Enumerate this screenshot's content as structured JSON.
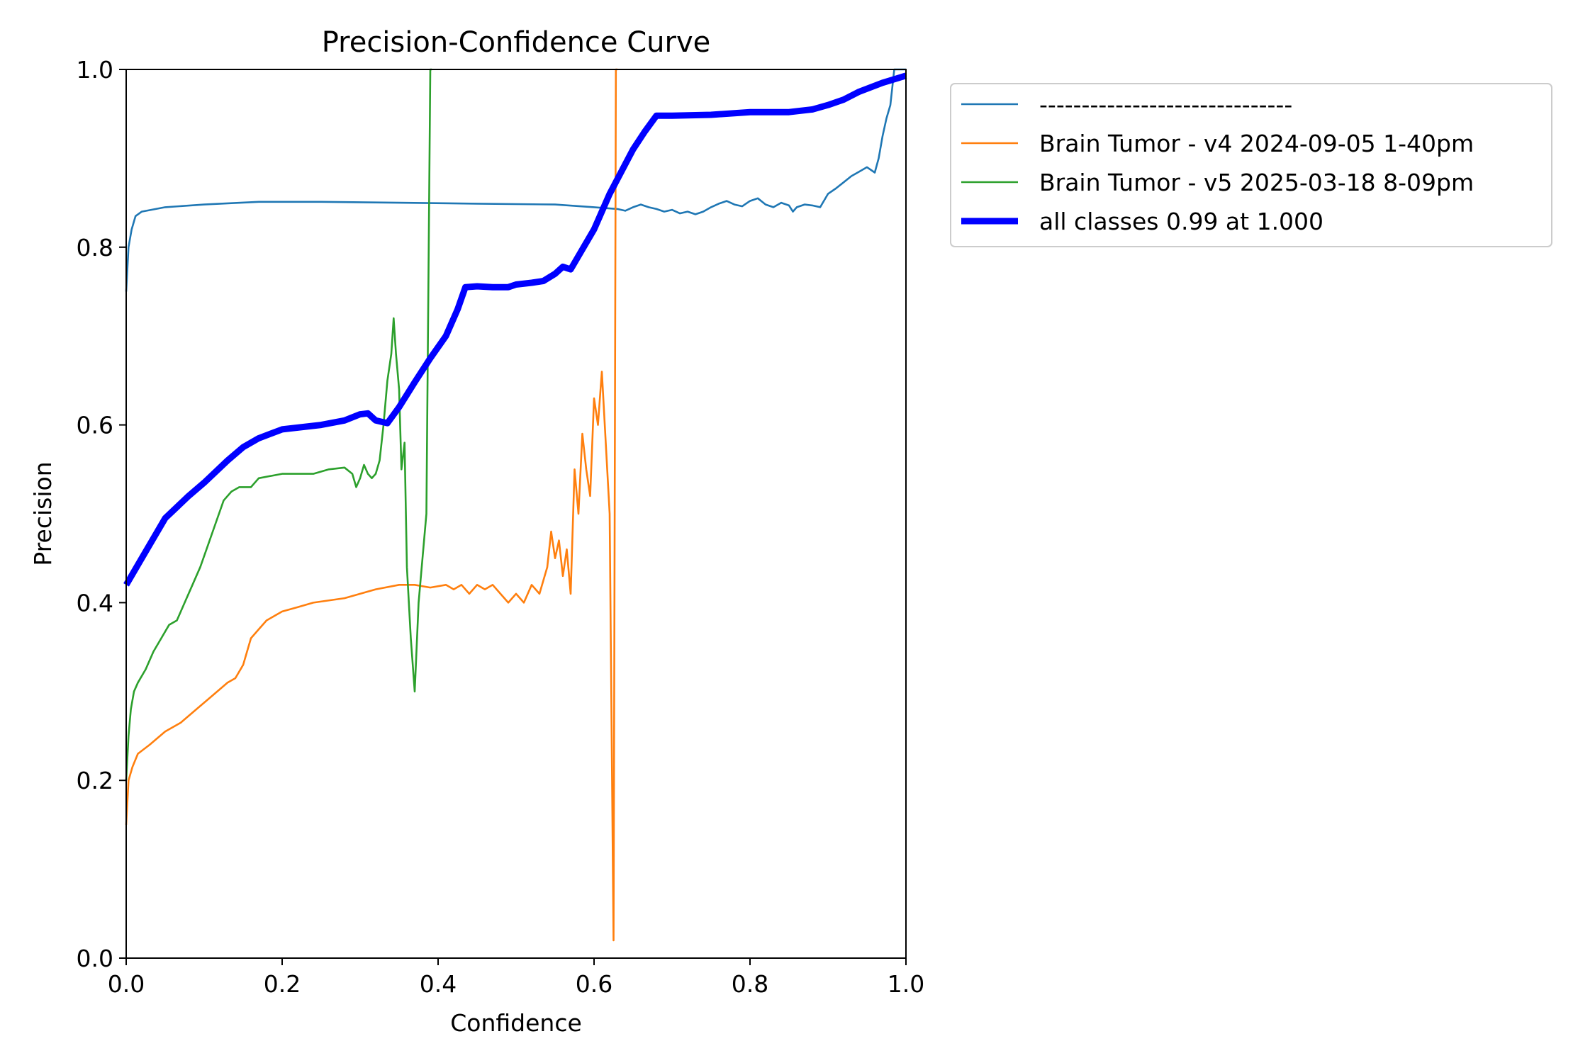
{
  "chart_data": {
    "type": "line",
    "title": "Precision-Confidence Curve",
    "xlabel": "Confidence",
    "ylabel": "Precision",
    "xlim": [
      0,
      1
    ],
    "ylim": [
      0,
      1
    ],
    "xticks": [
      "0.0",
      "0.2",
      "0.4",
      "0.6",
      "0.8",
      "1.0"
    ],
    "yticks": [
      "0.0",
      "0.2",
      "0.4",
      "0.6",
      "0.8",
      "1.0"
    ],
    "grid": false,
    "legend_position": "outside-right-top",
    "series": [
      {
        "name": "------------------------------",
        "color": "#1f77b4",
        "points": [
          [
            0.0,
            0.75
          ],
          [
            0.003,
            0.8
          ],
          [
            0.007,
            0.82
          ],
          [
            0.012,
            0.835
          ],
          [
            0.02,
            0.84
          ],
          [
            0.05,
            0.845
          ],
          [
            0.1,
            0.848
          ],
          [
            0.17,
            0.851
          ],
          [
            0.25,
            0.851
          ],
          [
            0.35,
            0.85
          ],
          [
            0.45,
            0.849
          ],
          [
            0.55,
            0.848
          ],
          [
            0.6,
            0.845
          ],
          [
            0.63,
            0.843
          ],
          [
            0.64,
            0.841
          ],
          [
            0.65,
            0.845
          ],
          [
            0.66,
            0.848
          ],
          [
            0.67,
            0.845
          ],
          [
            0.68,
            0.843
          ],
          [
            0.69,
            0.84
          ],
          [
            0.7,
            0.842
          ],
          [
            0.71,
            0.838
          ],
          [
            0.72,
            0.84
          ],
          [
            0.73,
            0.837
          ],
          [
            0.74,
            0.84
          ],
          [
            0.75,
            0.845
          ],
          [
            0.76,
            0.849
          ],
          [
            0.77,
            0.852
          ],
          [
            0.78,
            0.848
          ],
          [
            0.79,
            0.846
          ],
          [
            0.8,
            0.852
          ],
          [
            0.81,
            0.855
          ],
          [
            0.82,
            0.848
          ],
          [
            0.83,
            0.845
          ],
          [
            0.84,
            0.85
          ],
          [
            0.85,
            0.847
          ],
          [
            0.855,
            0.84
          ],
          [
            0.86,
            0.845
          ],
          [
            0.87,
            0.848
          ],
          [
            0.88,
            0.847
          ],
          [
            0.89,
            0.845
          ],
          [
            0.9,
            0.86
          ],
          [
            0.91,
            0.866
          ],
          [
            0.92,
            0.873
          ],
          [
            0.93,
            0.88
          ],
          [
            0.94,
            0.885
          ],
          [
            0.95,
            0.89
          ],
          [
            0.96,
            0.884
          ],
          [
            0.965,
            0.9
          ],
          [
            0.97,
            0.925
          ],
          [
            0.975,
            0.945
          ],
          [
            0.98,
            0.96
          ],
          [
            0.985,
            1.0
          ],
          [
            0.99,
            1.0
          ],
          [
            1.0,
            1.0
          ]
        ]
      },
      {
        "name": "Brain Tumor - v4 2024-09-05 1-40pm",
        "color": "#ff7f0e",
        "points": [
          [
            0.0,
            0.15
          ],
          [
            0.003,
            0.2
          ],
          [
            0.008,
            0.215
          ],
          [
            0.015,
            0.23
          ],
          [
            0.03,
            0.24
          ],
          [
            0.05,
            0.255
          ],
          [
            0.07,
            0.265
          ],
          [
            0.09,
            0.28
          ],
          [
            0.11,
            0.295
          ],
          [
            0.13,
            0.31
          ],
          [
            0.14,
            0.315
          ],
          [
            0.15,
            0.33
          ],
          [
            0.16,
            0.36
          ],
          [
            0.17,
            0.37
          ],
          [
            0.18,
            0.38
          ],
          [
            0.2,
            0.39
          ],
          [
            0.22,
            0.395
          ],
          [
            0.24,
            0.4
          ],
          [
            0.28,
            0.405
          ],
          [
            0.3,
            0.41
          ],
          [
            0.32,
            0.415
          ],
          [
            0.35,
            0.42
          ],
          [
            0.37,
            0.42
          ],
          [
            0.39,
            0.417
          ],
          [
            0.41,
            0.42
          ],
          [
            0.42,
            0.415
          ],
          [
            0.43,
            0.42
          ],
          [
            0.44,
            0.41
          ],
          [
            0.45,
            0.42
          ],
          [
            0.46,
            0.415
          ],
          [
            0.47,
            0.42
          ],
          [
            0.48,
            0.41
          ],
          [
            0.49,
            0.4
          ],
          [
            0.5,
            0.41
          ],
          [
            0.51,
            0.4
          ],
          [
            0.52,
            0.42
          ],
          [
            0.53,
            0.41
          ],
          [
            0.54,
            0.44
          ],
          [
            0.545,
            0.48
          ],
          [
            0.55,
            0.45
          ],
          [
            0.555,
            0.47
          ],
          [
            0.56,
            0.43
          ],
          [
            0.565,
            0.46
          ],
          [
            0.57,
            0.41
          ],
          [
            0.575,
            0.55
          ],
          [
            0.58,
            0.5
          ],
          [
            0.585,
            0.59
          ],
          [
            0.59,
            0.55
          ],
          [
            0.595,
            0.52
          ],
          [
            0.6,
            0.63
          ],
          [
            0.605,
            0.6
          ],
          [
            0.61,
            0.66
          ],
          [
            0.615,
            0.58
          ],
          [
            0.62,
            0.5
          ],
          [
            0.625,
            0.02
          ],
          [
            0.628,
            1.0
          ],
          [
            0.63,
            1.0
          ]
        ]
      },
      {
        "name": "Brain Tumor - v5 2025-03-18 8-09pm",
        "color": "#2ca02c",
        "points": [
          [
            0.0,
            0.2
          ],
          [
            0.003,
            0.25
          ],
          [
            0.006,
            0.28
          ],
          [
            0.01,
            0.3
          ],
          [
            0.015,
            0.31
          ],
          [
            0.025,
            0.325
          ],
          [
            0.035,
            0.345
          ],
          [
            0.045,
            0.36
          ],
          [
            0.055,
            0.375
          ],
          [
            0.065,
            0.38
          ],
          [
            0.075,
            0.4
          ],
          [
            0.085,
            0.42
          ],
          [
            0.095,
            0.44
          ],
          [
            0.105,
            0.465
          ],
          [
            0.115,
            0.49
          ],
          [
            0.125,
            0.515
          ],
          [
            0.135,
            0.525
          ],
          [
            0.145,
            0.53
          ],
          [
            0.16,
            0.53
          ],
          [
            0.17,
            0.54
          ],
          [
            0.2,
            0.545
          ],
          [
            0.24,
            0.545
          ],
          [
            0.26,
            0.55
          ],
          [
            0.28,
            0.552
          ],
          [
            0.29,
            0.545
          ],
          [
            0.295,
            0.53
          ],
          [
            0.3,
            0.54
          ],
          [
            0.305,
            0.555
          ],
          [
            0.31,
            0.545
          ],
          [
            0.315,
            0.54
          ],
          [
            0.32,
            0.545
          ],
          [
            0.325,
            0.56
          ],
          [
            0.33,
            0.6
          ],
          [
            0.335,
            0.65
          ],
          [
            0.34,
            0.68
          ],
          [
            0.343,
            0.72
          ],
          [
            0.346,
            0.68
          ],
          [
            0.35,
            0.64
          ],
          [
            0.353,
            0.55
          ],
          [
            0.357,
            0.58
          ],
          [
            0.36,
            0.44
          ],
          [
            0.365,
            0.36
          ],
          [
            0.37,
            0.3
          ],
          [
            0.375,
            0.4
          ],
          [
            0.38,
            0.45
          ],
          [
            0.385,
            0.5
          ],
          [
            0.388,
            0.8
          ],
          [
            0.39,
            1.0
          ],
          [
            0.392,
            1.0
          ]
        ]
      },
      {
        "name": "all classes 0.99 at 1.000",
        "color": "#0000ff",
        "bold": true,
        "points": [
          [
            0.0,
            0.42
          ],
          [
            0.02,
            0.45
          ],
          [
            0.05,
            0.495
          ],
          [
            0.08,
            0.52
          ],
          [
            0.1,
            0.535
          ],
          [
            0.13,
            0.56
          ],
          [
            0.15,
            0.575
          ],
          [
            0.17,
            0.585
          ],
          [
            0.2,
            0.595
          ],
          [
            0.25,
            0.6
          ],
          [
            0.28,
            0.605
          ],
          [
            0.3,
            0.612
          ],
          [
            0.31,
            0.613
          ],
          [
            0.32,
            0.605
          ],
          [
            0.335,
            0.602
          ],
          [
            0.35,
            0.62
          ],
          [
            0.37,
            0.648
          ],
          [
            0.39,
            0.675
          ],
          [
            0.41,
            0.7
          ],
          [
            0.425,
            0.73
          ],
          [
            0.435,
            0.755
          ],
          [
            0.45,
            0.756
          ],
          [
            0.47,
            0.755
          ],
          [
            0.49,
            0.755
          ],
          [
            0.5,
            0.758
          ],
          [
            0.52,
            0.76
          ],
          [
            0.535,
            0.762
          ],
          [
            0.55,
            0.77
          ],
          [
            0.56,
            0.778
          ],
          [
            0.57,
            0.775
          ],
          [
            0.6,
            0.82
          ],
          [
            0.62,
            0.86
          ],
          [
            0.65,
            0.91
          ],
          [
            0.665,
            0.93
          ],
          [
            0.68,
            0.948
          ],
          [
            0.7,
            0.948
          ],
          [
            0.75,
            0.949
          ],
          [
            0.8,
            0.952
          ],
          [
            0.85,
            0.952
          ],
          [
            0.88,
            0.955
          ],
          [
            0.9,
            0.96
          ],
          [
            0.92,
            0.966
          ],
          [
            0.94,
            0.975
          ],
          [
            0.97,
            0.985
          ],
          [
            1.0,
            0.993
          ]
        ]
      }
    ]
  }
}
